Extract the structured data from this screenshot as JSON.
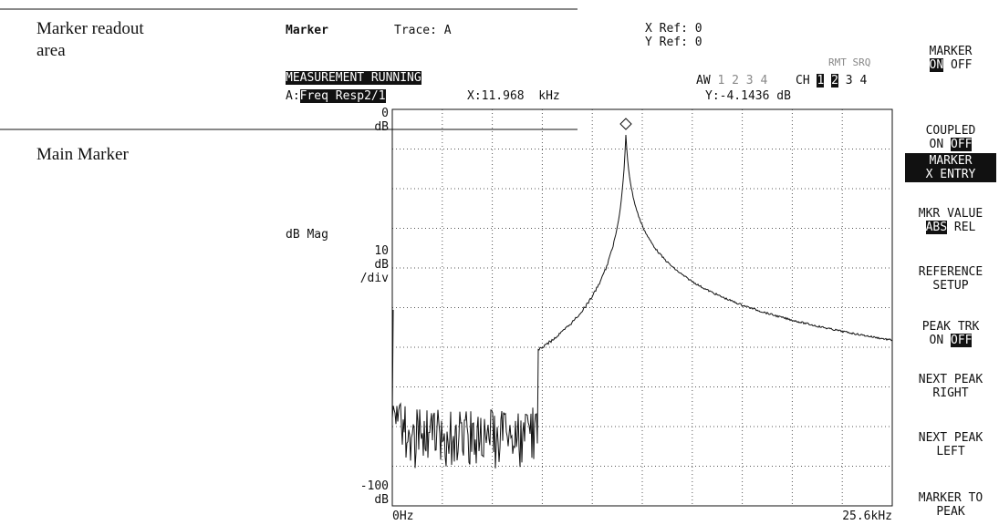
{
  "annotations": {
    "readout_area": "Marker readout area",
    "main_marker": "Main Marker"
  },
  "status": {
    "marker": "Marker",
    "trace": "Trace: A",
    "x_ref": "X Ref: 0",
    "y_ref": "Y Ref: 0",
    "rmt_srq": "RMT SRQ",
    "measurement": "MEASUREMENT RUNNING",
    "aw": "AW",
    "aw_channels": [
      "1",
      "2",
      "3",
      "4"
    ],
    "ch": "CH",
    "ch_channels": [
      {
        "text": "1",
        "highlighted": true
      },
      {
        "text": "2",
        "highlighted": true
      },
      {
        "text": "3",
        "highlighted": false
      },
      {
        "text": "4",
        "highlighted": false
      }
    ],
    "trace_label": "A:",
    "trace_name": "Freq Resp2/1",
    "x_readout": "X:11.968  kHz",
    "y_readout": "Y:-4.1436 dB"
  },
  "plot": {
    "top_value": "0",
    "top_unit": "dB",
    "axis_name": "dB Mag",
    "scale_value": "10",
    "scale_unit": "dB",
    "scale_per": "/div",
    "bottom_value": "-100",
    "bottom_unit": "dB",
    "x_start": "0Hz",
    "x_end": "25.6kHz"
  },
  "softkeys": [
    {
      "highlighted": false,
      "lines": [
        [
          {
            "text": "MARKER",
            "highlighted": false
          }
        ],
        [
          {
            "text": "ON",
            "highlighted": true
          },
          {
            "text": "OFF",
            "highlighted": false
          }
        ]
      ]
    },
    {
      "highlighted": false,
      "lines": [
        [
          {
            "text": "COUPLED",
            "highlighted": false
          }
        ],
        [
          {
            "text": "ON",
            "highlighted": false
          },
          {
            "text": "OFF",
            "highlighted": true
          }
        ]
      ]
    },
    {
      "highlighted": true,
      "lines": [
        [
          {
            "text": "MARKER",
            "highlighted": false
          }
        ],
        [
          {
            "text": "X ENTRY",
            "highlighted": false
          }
        ]
      ]
    },
    {
      "highlighted": false,
      "lines": [
        [
          {
            "text": "MKR VALUE",
            "highlighted": false
          }
        ],
        [
          {
            "text": "ABS",
            "highlighted": true
          },
          {
            "text": "REL",
            "highlighted": false
          }
        ]
      ]
    },
    {
      "highlighted": false,
      "lines": [
        [
          {
            "text": "REFERENCE",
            "highlighted": false
          }
        ],
        [
          {
            "text": "SETUP",
            "highlighted": false
          }
        ]
      ]
    },
    {
      "highlighted": false,
      "lines": [
        [
          {
            "text": "PEAK TRK",
            "highlighted": false
          }
        ],
        [
          {
            "text": "ON",
            "highlighted": false
          },
          {
            "text": "OFF",
            "highlighted": true
          }
        ]
      ]
    },
    {
      "highlighted": false,
      "lines": [
        [
          {
            "text": "NEXT PEAK",
            "highlighted": false
          }
        ],
        [
          {
            "text": "RIGHT",
            "highlighted": false
          }
        ]
      ]
    },
    {
      "highlighted": false,
      "lines": [
        [
          {
            "text": "NEXT PEAK",
            "highlighted": false
          }
        ],
        [
          {
            "text": "LEFT",
            "highlighted": false
          }
        ]
      ]
    },
    {
      "highlighted": false,
      "lines": [
        [
          {
            "text": "MARKER TO",
            "highlighted": false
          }
        ],
        [
          {
            "text": "PEAK",
            "highlighted": false
          }
        ]
      ]
    }
  ]
}
